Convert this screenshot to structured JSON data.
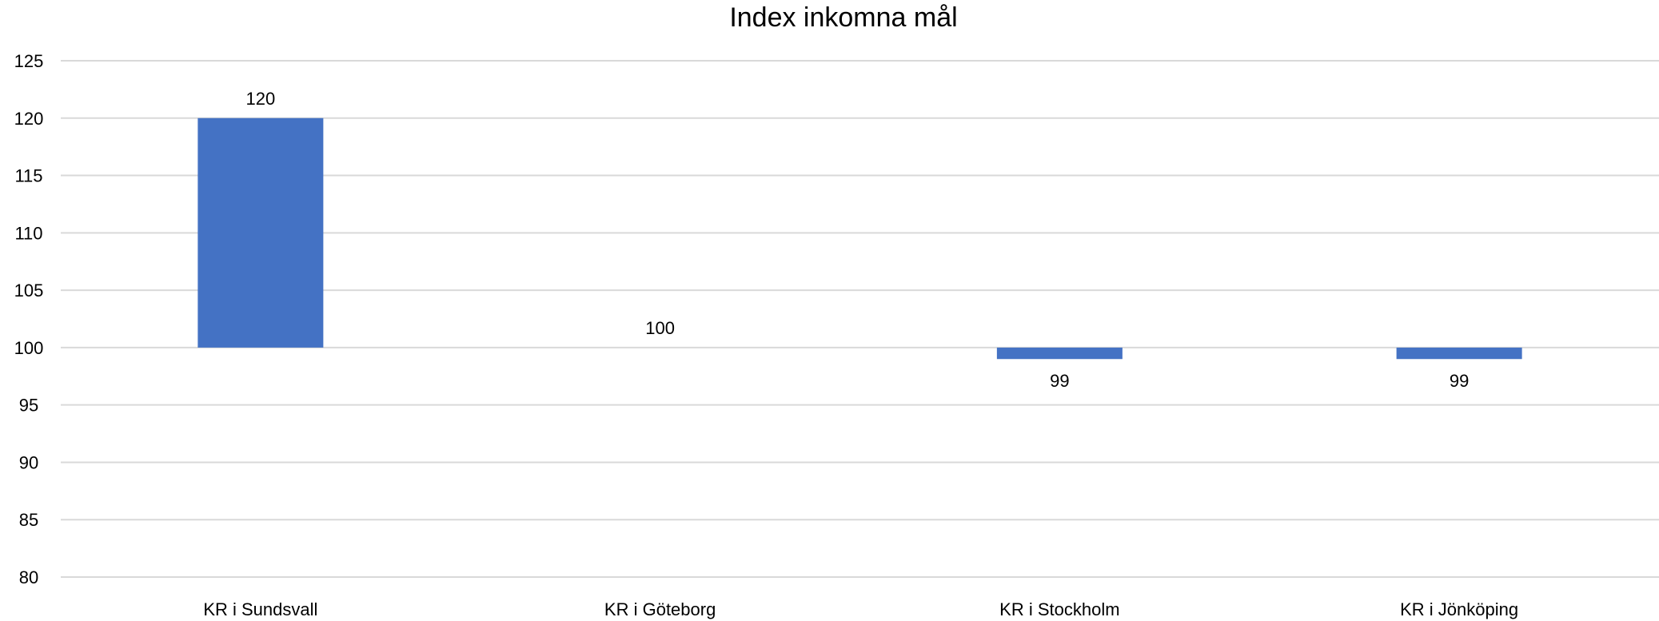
{
  "chart_data": {
    "type": "bar",
    "title": "Index inkomna mål",
    "categories": [
      "KR i Sundsvall",
      "KR i Göteborg",
      "KR i Stockholm",
      "KR i Jönköping"
    ],
    "values": [
      120,
      100,
      99,
      99
    ],
    "data_labels": [
      "120",
      "100",
      "99",
      "99"
    ],
    "baseline": 100,
    "ylim": [
      80,
      125
    ],
    "yticks": [
      "80",
      "85",
      "90",
      "95",
      "100",
      "105",
      "110",
      "115",
      "120",
      "125"
    ],
    "grid": true,
    "legend": "none",
    "colors": {
      "bar": "#4472c4",
      "grid": "#d9d9d9",
      "text": "#000000"
    }
  }
}
